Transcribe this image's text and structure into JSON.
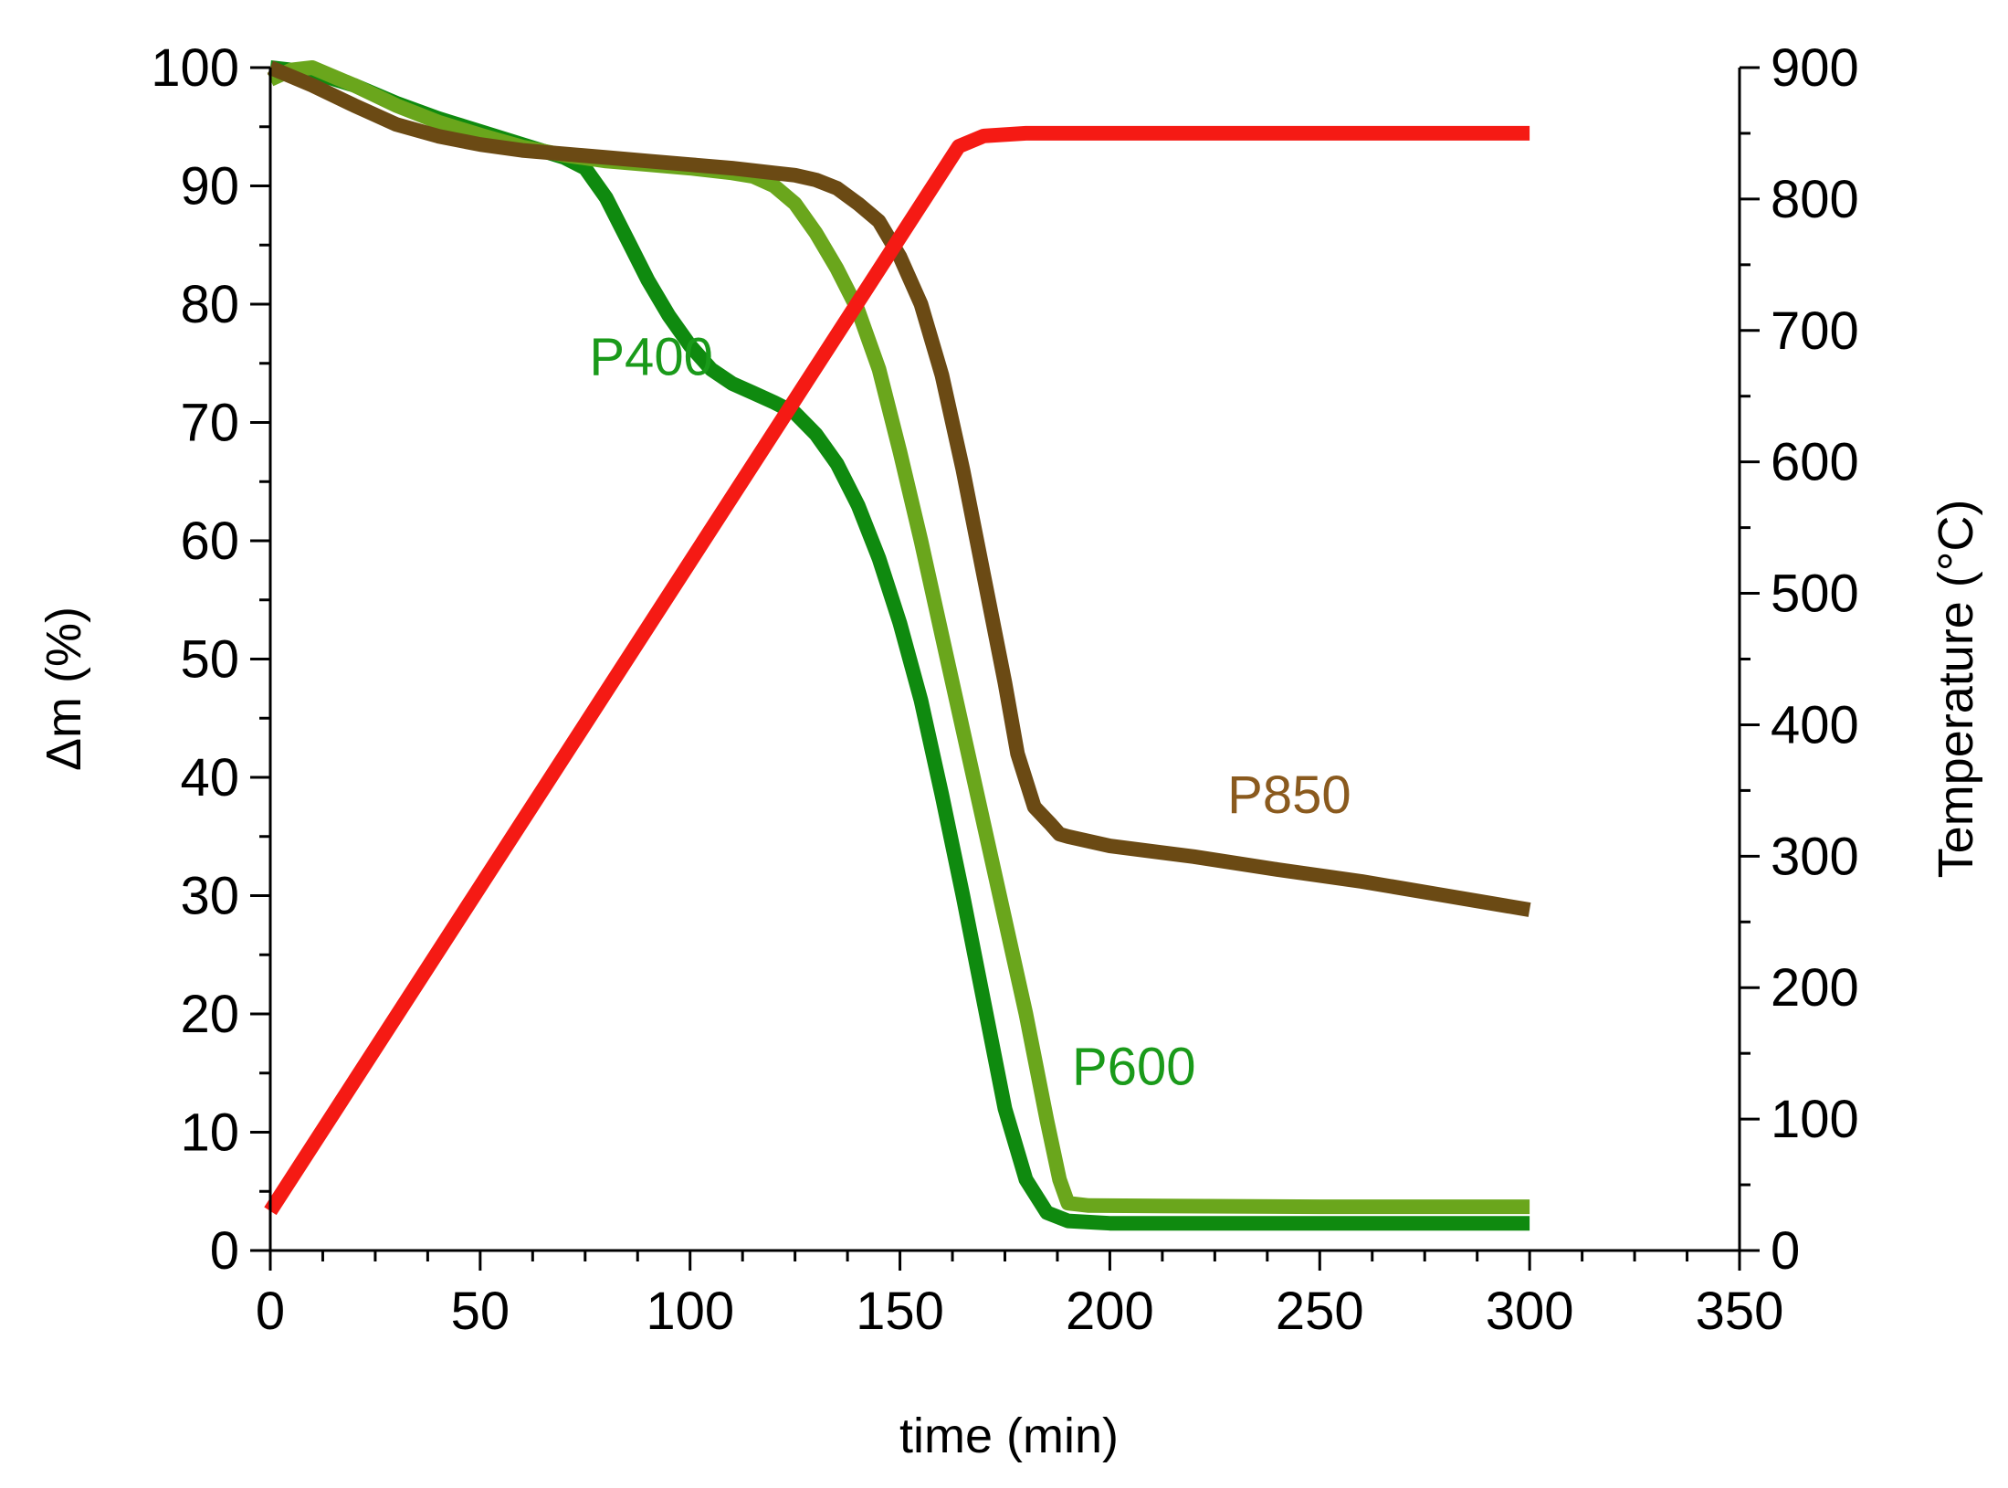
{
  "chart_data": {
    "type": "line",
    "xlabel": "time (min)",
    "ylabel": "Δm (%)",
    "y2label": "Temperature (°C)",
    "xlim": [
      0,
      350
    ],
    "ylim": [
      0,
      100
    ],
    "y2lim": [
      0,
      900
    ],
    "xticks": [
      0,
      50,
      100,
      150,
      200,
      250,
      300,
      350
    ],
    "yticks": [
      0,
      10,
      20,
      30,
      40,
      50,
      60,
      70,
      80,
      90,
      100
    ],
    "y2ticks": [
      0,
      100,
      200,
      300,
      400,
      500,
      600,
      700,
      800,
      900
    ],
    "grid": false,
    "series": [
      {
        "name": "P400",
        "axis": "left",
        "color": "#0f8a0f",
        "label_color": "#1a9a1a",
        "points": [
          [
            0,
            100
          ],
          [
            10,
            99.6
          ],
          [
            20,
            98.5
          ],
          [
            30,
            97
          ],
          [
            40,
            95.7
          ],
          [
            50,
            94.6
          ],
          [
            60,
            93.5
          ],
          [
            70,
            92.4
          ],
          [
            75,
            91.5
          ],
          [
            80,
            89
          ],
          [
            85,
            85.5
          ],
          [
            90,
            82
          ],
          [
            95,
            79
          ],
          [
            100,
            76.5
          ],
          [
            105,
            74.5
          ],
          [
            110,
            73.3
          ],
          [
            115,
            72.5
          ],
          [
            120,
            71.7
          ],
          [
            125,
            70.8
          ],
          [
            130,
            69
          ],
          [
            135,
            66.5
          ],
          [
            140,
            63
          ],
          [
            145,
            58.5
          ],
          [
            150,
            53
          ],
          [
            155,
            46.5
          ],
          [
            160,
            38.5
          ],
          [
            165,
            30
          ],
          [
            170,
            21
          ],
          [
            175,
            12
          ],
          [
            180,
            6
          ],
          [
            185,
            3.2
          ],
          [
            190,
            2.5
          ],
          [
            200,
            2.3
          ],
          [
            250,
            2.3
          ],
          [
            300,
            2.3
          ]
        ]
      },
      {
        "name": "P600",
        "axis": "left",
        "color": "#6aa61c",
        "label_color": "#1a9a1a",
        "points": [
          [
            0,
            99
          ],
          [
            5,
            99.8
          ],
          [
            10,
            100
          ],
          [
            20,
            98.5
          ],
          [
            30,
            96.8
          ],
          [
            40,
            95.4
          ],
          [
            50,
            94.3
          ],
          [
            60,
            93.3
          ],
          [
            70,
            92.6
          ],
          [
            80,
            92.1
          ],
          [
            90,
            91.8
          ],
          [
            100,
            91.5
          ],
          [
            110,
            91.1
          ],
          [
            115,
            90.8
          ],
          [
            120,
            90
          ],
          [
            125,
            88.5
          ],
          [
            130,
            86
          ],
          [
            135,
            83
          ],
          [
            140,
            79.5
          ],
          [
            145,
            74.5
          ],
          [
            150,
            67.5
          ],
          [
            155,
            60
          ],
          [
            160,
            52
          ],
          [
            165,
            44
          ],
          [
            170,
            36
          ],
          [
            175,
            28
          ],
          [
            180,
            20
          ],
          [
            185,
            11
          ],
          [
            188,
            6
          ],
          [
            190,
            4
          ],
          [
            195,
            3.8
          ],
          [
            250,
            3.7
          ],
          [
            300,
            3.7
          ]
        ]
      },
      {
        "name": "P850",
        "axis": "left",
        "color": "#6b4a14",
        "label_color": "#8a5a1e",
        "points": [
          [
            0,
            100
          ],
          [
            10,
            98.5
          ],
          [
            20,
            96.8
          ],
          [
            30,
            95.2
          ],
          [
            40,
            94.2
          ],
          [
            50,
            93.5
          ],
          [
            60,
            93
          ],
          [
            70,
            92.7
          ],
          [
            80,
            92.4
          ],
          [
            90,
            92.1
          ],
          [
            100,
            91.8
          ],
          [
            110,
            91.5
          ],
          [
            120,
            91.1
          ],
          [
            125,
            90.9
          ],
          [
            130,
            90.5
          ],
          [
            135,
            89.8
          ],
          [
            140,
            88.5
          ],
          [
            145,
            87
          ],
          [
            150,
            84
          ],
          [
            155,
            80
          ],
          [
            160,
            74
          ],
          [
            165,
            66
          ],
          [
            170,
            57
          ],
          [
            175,
            48
          ],
          [
            178,
            42
          ],
          [
            182,
            37.5
          ],
          [
            186,
            36
          ],
          [
            188,
            35.2
          ],
          [
            190,
            35
          ],
          [
            200,
            34.2
          ],
          [
            220,
            33.3
          ],
          [
            240,
            32.2
          ],
          [
            260,
            31.2
          ],
          [
            280,
            30
          ],
          [
            300,
            28.8
          ]
        ]
      },
      {
        "name": "Temperature",
        "axis": "right",
        "color": "#f51a14",
        "points": [
          [
            0,
            30
          ],
          [
            164,
            840
          ],
          [
            170,
            848
          ],
          [
            180,
            850
          ],
          [
            300,
            850
          ]
        ]
      }
    ],
    "annotations": [
      {
        "text": "P400",
        "x": 76,
        "y": 74,
        "series": "P400"
      },
      {
        "text": "P600",
        "x": 191,
        "y": 14,
        "series": "P600"
      },
      {
        "text": "P850",
        "x": 228,
        "y": 37,
        "series": "P850"
      }
    ]
  }
}
